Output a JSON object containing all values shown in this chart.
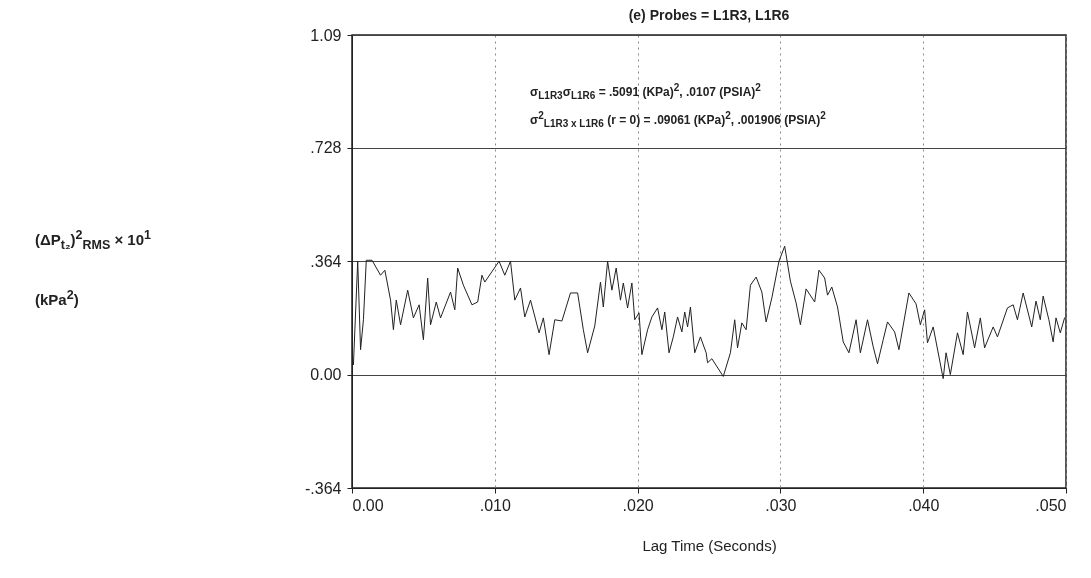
{
  "chart_data": {
    "type": "line",
    "title": "(e)    Probes = L1R3, L1R6",
    "xlabel": "Lag Time (Seconds)",
    "ylabel": "(ΔP$_{t₂}$)$^{2}$$_{RMS}$  × 10$^{1}$   (kPa$^{2}$)",
    "annotations": [
      "σ$_{L1R3}$σ$_{L1R6}$ = .5091 (KPa)$^{2}$, .0107 (PSIA)$^{2}$",
      "σ$^{2}$$_{L1R3 x L1R6}$ (r = 0) = .09061 (KPa)$^{2}$, .001906 (PSIA)$^{2}$"
    ],
    "x": [
      0.0001,
      0.0004,
      0.0006,
      0.0008,
      0.001,
      0.0014,
      0.002,
      0.0023,
      0.0027,
      0.0029,
      0.0031,
      0.0034,
      0.0039,
      0.0043,
      0.0047,
      0.005,
      0.0053,
      0.0055,
      0.0059,
      0.0062,
      0.0069,
      0.0072,
      0.0074,
      0.0078,
      0.0084,
      0.0088,
      0.0091,
      0.0093,
      0.0103,
      0.0107,
      0.0111,
      0.0114,
      0.0118,
      0.0121,
      0.0125,
      0.0131,
      0.0134,
      0.0138,
      0.0142,
      0.0147,
      0.0153,
      0.0158,
      0.0162,
      0.0165,
      0.017,
      0.0174,
      0.0176,
      0.0179,
      0.0182,
      0.0185,
      0.0188,
      0.019,
      0.0193,
      0.0196,
      0.0198,
      0.0201,
      0.0203,
      0.0207,
      0.021,
      0.0214,
      0.0217,
      0.0219,
      0.0222,
      0.0225,
      0.0228,
      0.0231,
      0.0233,
      0.0235,
      0.0237,
      0.024,
      0.0244,
      0.0248,
      0.0249,
      0.0252,
      0.026,
      0.0265,
      0.0268,
      0.027,
      0.0273,
      0.0276,
      0.0279,
      0.0283,
      0.0287,
      0.029,
      0.0294,
      0.0299,
      0.0303,
      0.0307,
      0.0311,
      0.0314,
      0.0318,
      0.0324,
      0.0327,
      0.0331,
      0.0333,
      0.0336,
      0.034,
      0.0344,
      0.0348,
      0.0353,
      0.0356,
      0.0361,
      0.0365,
      0.0368,
      0.0372,
      0.0375,
      0.038,
      0.0383,
      0.039,
      0.0395,
      0.0398,
      0.0401,
      0.0403,
      0.0407,
      0.0414,
      0.0416,
      0.0419,
      0.0424,
      0.0428,
      0.0431,
      0.0436,
      0.044,
      0.0443,
      0.0449,
      0.0452,
      0.0459,
      0.0463,
      0.0466,
      0.047,
      0.0476,
      0.0479,
      0.0482,
      0.0484,
      0.0488,
      0.0491,
      0.0493,
      0.0496,
      0.0499
    ],
    "series": [
      {
        "color": "#222222",
        "values": [
          0.032,
          0.364,
          0.08,
          0.176,
          0.367,
          0.367,
          0.319,
          0.335,
          0.239,
          0.144,
          0.239,
          0.16,
          0.271,
          0.182,
          0.224,
          0.112,
          0.31,
          0.16,
          0.233,
          0.182,
          0.265,
          0.208,
          0.342,
          0.287,
          0.224,
          0.233,
          0.319,
          0.297,
          0.364,
          0.319,
          0.364,
          0.239,
          0.278,
          0.185,
          0.239,
          0.134,
          0.182,
          0.064,
          0.176,
          0.172,
          0.262,
          0.262,
          0.144,
          0.07,
          0.156,
          0.297,
          0.217,
          0.364,
          0.271,
          0.342,
          0.239,
          0.294,
          0.214,
          0.294,
          0.176,
          0.198,
          0.064,
          0.144,
          0.185,
          0.214,
          0.144,
          0.201,
          0.07,
          0.121,
          0.185,
          0.137,
          0.201,
          0.153,
          0.217,
          0.07,
          0.121,
          0.07,
          0.038,
          0.051,
          -0.006,
          0.07,
          0.176,
          0.086,
          0.166,
          0.144,
          0.287,
          0.313,
          0.265,
          0.169,
          0.246,
          0.364,
          0.412,
          0.3,
          0.23,
          0.16,
          0.275,
          0.233,
          0.335,
          0.31,
          0.255,
          0.281,
          0.217,
          0.105,
          0.07,
          0.176,
          0.07,
          0.176,
          0.089,
          0.035,
          0.112,
          0.169,
          0.137,
          0.08,
          0.262,
          0.227,
          0.16,
          0.208,
          0.102,
          0.153,
          -0.013,
          0.07,
          0.0,
          0.134,
          0.064,
          0.201,
          0.086,
          0.182,
          0.086,
          0.153,
          0.121,
          0.214,
          0.224,
          0.176,
          0.262,
          0.153,
          0.236,
          0.176,
          0.252,
          0.176,
          0.105,
          0.182,
          0.134,
          0.182
        ]
      }
    ],
    "xlim": [
      0,
      0.05
    ],
    "xticks": [
      {
        "value": 0,
        "label": "0.00"
      },
      {
        "value": 0.01,
        "label": ".010"
      },
      {
        "value": 0.02,
        "label": ".020"
      },
      {
        "value": 0.03,
        "label": ".030"
      },
      {
        "value": 0.04,
        "label": ".040"
      },
      {
        "value": 0.05,
        "label": ".050"
      }
    ],
    "ylim": [
      -0.364,
      1.09
    ],
    "yticks": [
      {
        "value": -0.364,
        "label": "-.364"
      },
      {
        "value": 0,
        "label": "0.00"
      },
      {
        "value": 0.364,
        "label": ".364"
      },
      {
        "value": 0.728,
        "label": ".728"
      },
      {
        "value": 1.09,
        "label": "1.09"
      }
    ],
    "grid": true,
    "line_style": "solid"
  }
}
